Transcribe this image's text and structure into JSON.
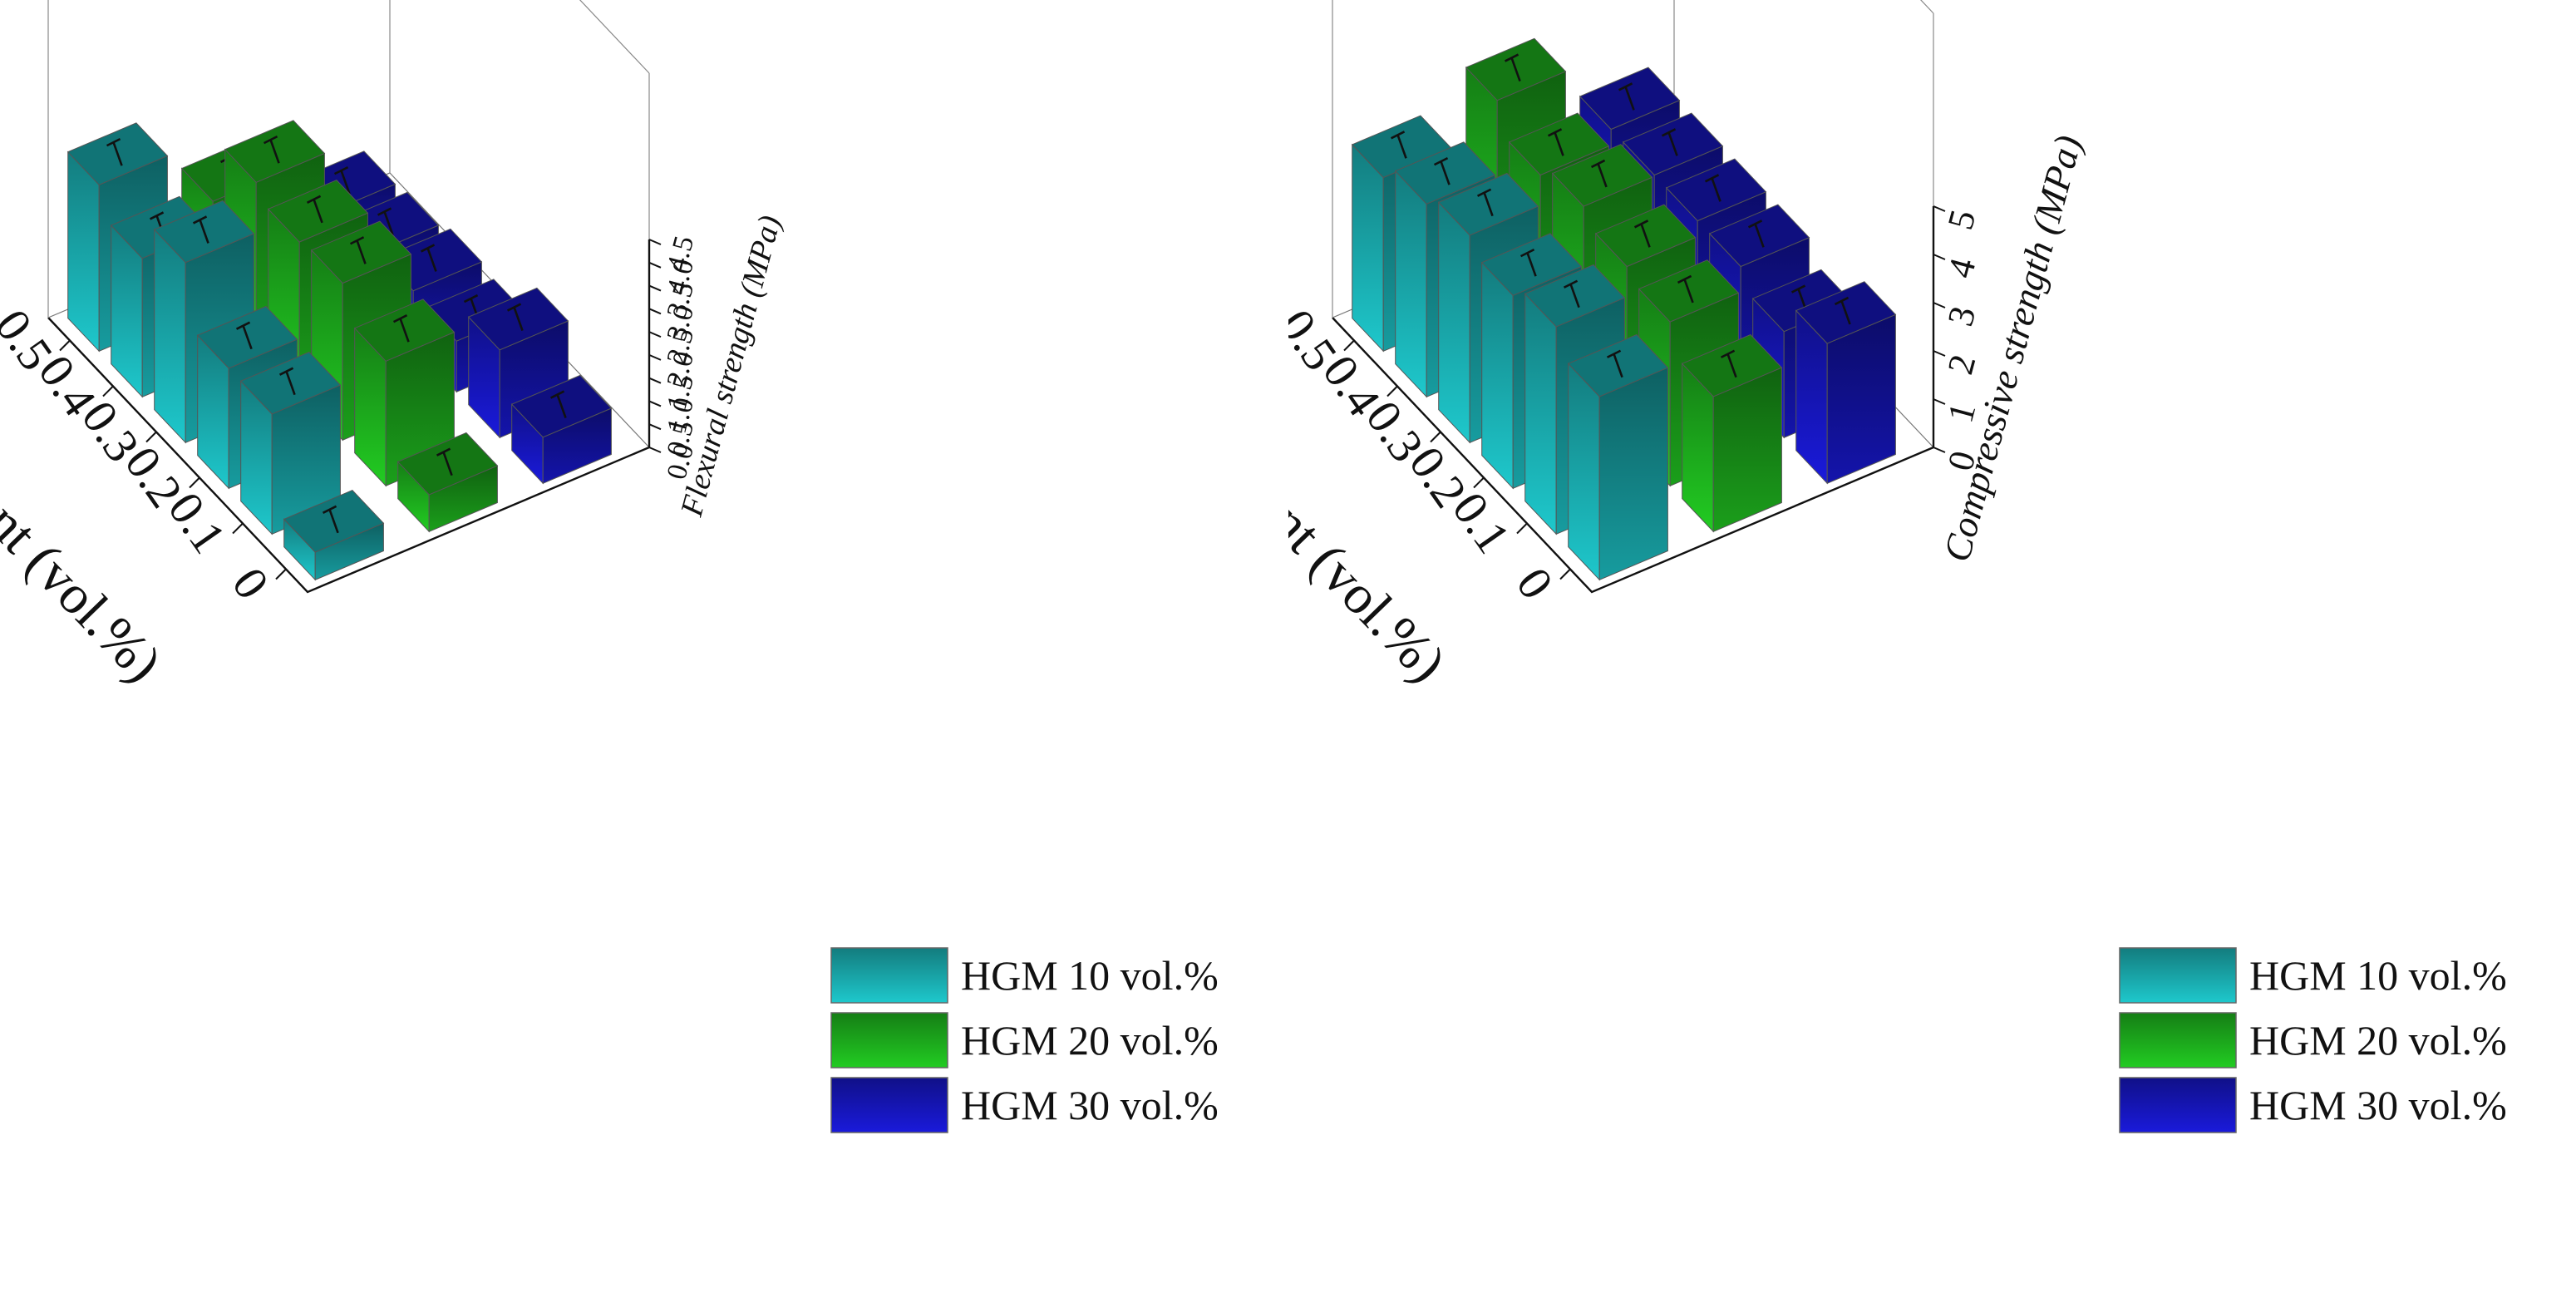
{
  "chart_data": [
    {
      "type": "bar",
      "subtype": "3d-bar",
      "x": {
        "label": "SF content (vol.%)",
        "categories": [
          "0",
          "0.1",
          "0.2",
          "0.3",
          "0.4",
          "0.5"
        ]
      },
      "zlabel": "Flexural strength (MPa)",
      "zticks": [
        "0.0",
        "0.5",
        "1.0",
        "1.5",
        "2.0",
        "2.5",
        "3.0",
        "3.5",
        "4.0",
        "4.5"
      ],
      "zlim": [
        0,
        4.5
      ],
      "series": [
        {
          "name": "HGM 10 vol.%",
          "color": "#1ec8cc",
          "values": [
            0.6,
            2.6,
            2.6,
            3.9,
            3.0,
            3.6
          ]
        },
        {
          "name": "HGM 20 vol.%",
          "color": "#22cc22",
          "values": [
            0.8,
            2.7,
            3.4,
            3.3,
            3.6,
            2.2
          ]
        },
        {
          "name": "HGM 30 vol.%",
          "color": "#1a1adb",
          "values": [
            1.0,
            1.9,
            1.1,
            1.2,
            1.0,
            0.9
          ]
        }
      ],
      "legend": {
        "position": "bottom-right"
      },
      "error_bars": true
    },
    {
      "type": "bar",
      "subtype": "3d-bar",
      "x": {
        "label": "SF content (vol.%)",
        "categories": [
          "0",
          "0.1",
          "0.2",
          "0.3",
          "0.4",
          "0.5"
        ]
      },
      "zlabel": "Compressive strength (MPa)",
      "zticks": [
        "0",
        "1",
        "2",
        "3",
        "4",
        "5"
      ],
      "zlim": [
        0,
        5
      ],
      "series": [
        {
          "name": "HGM 10 vol.%",
          "color": "#1ec8cc",
          "values": [
            3.8,
            4.3,
            4.0,
            4.3,
            4.0,
            3.6
          ]
        },
        {
          "name": "HGM 20 vol.%",
          "color": "#22cc22",
          "values": [
            2.8,
            3.4,
            3.6,
            3.9,
            3.6,
            4.2
          ]
        },
        {
          "name": "HGM 30 vol.%",
          "color": "#1a1adb",
          "values": [
            2.9,
            2.2,
            2.6,
            2.6,
            2.6,
            2.6
          ]
        }
      ],
      "legend": {
        "position": "bottom-right"
      },
      "error_bars": true
    }
  ]
}
